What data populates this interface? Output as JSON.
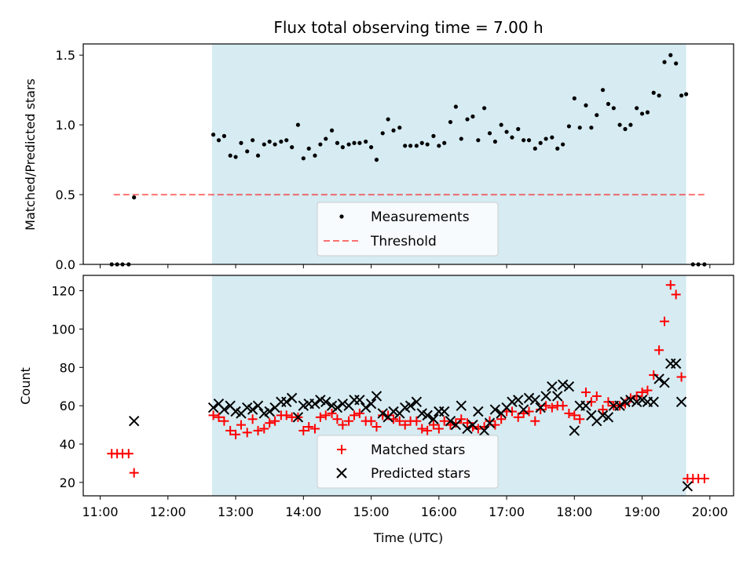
{
  "title": "Flux total observing time = 7.00 h",
  "colors": {
    "span": "#add8e6",
    "threshold": "#ff0000",
    "matched": "#ff0000",
    "predicted": "#000000",
    "measurements": "#000000"
  },
  "chart_data": [
    {
      "type": "scatter",
      "panel": "top",
      "ylabel": "Matched/Predicted stars",
      "ylim": [
        0,
        1.58
      ],
      "yticks": [
        0.0,
        0.5,
        1.0,
        1.5
      ],
      "ytick_labels": [
        "0.0",
        "0.5",
        "1.0",
        "1.5"
      ],
      "shaded_span": [
        12.65,
        19.65
      ],
      "legend": {
        "placement": "bottom-center",
        "entries": [
          "Measurements",
          "Threshold"
        ]
      },
      "threshold": {
        "name": "Threshold",
        "x": [
          11.2,
          19.92
        ],
        "y": 0.5
      },
      "series": [
        {
          "name": "Measurements",
          "x": [
            11.17,
            11.25,
            11.33,
            11.42,
            11.5,
            12.67,
            12.75,
            12.83,
            12.92,
            13.0,
            13.08,
            13.17,
            13.25,
            13.33,
            13.42,
            13.5,
            13.58,
            13.67,
            13.75,
            13.83,
            13.92,
            14.0,
            14.08,
            14.17,
            14.25,
            14.33,
            14.42,
            14.5,
            14.58,
            14.67,
            14.75,
            14.83,
            14.92,
            15.0,
            15.08,
            15.17,
            15.25,
            15.33,
            15.42,
            15.5,
            15.58,
            15.67,
            15.75,
            15.83,
            15.92,
            16.0,
            16.08,
            16.17,
            16.25,
            16.33,
            16.42,
            16.5,
            16.58,
            16.67,
            16.75,
            16.83,
            16.92,
            17.0,
            17.08,
            17.17,
            17.25,
            17.33,
            17.42,
            17.5,
            17.58,
            17.67,
            17.75,
            17.83,
            17.92,
            18.0,
            18.08,
            18.17,
            18.25,
            18.33,
            18.42,
            18.5,
            18.58,
            18.67,
            18.75,
            18.83,
            18.92,
            19.0,
            19.08,
            19.17,
            19.25,
            19.33,
            19.42,
            19.5,
            19.58,
            19.65,
            19.75,
            19.83,
            19.92
          ],
          "y": [
            0,
            0,
            0,
            0,
            0.48,
            0.93,
            0.89,
            0.92,
            0.78,
            0.77,
            0.87,
            0.81,
            0.89,
            0.78,
            0.86,
            0.88,
            0.86,
            0.88,
            0.89,
            0.84,
            1.0,
            0.76,
            0.83,
            0.78,
            0.86,
            0.9,
            0.96,
            0.87,
            0.84,
            0.86,
            0.87,
            0.87,
            0.88,
            0.84,
            0.75,
            0.94,
            1.04,
            0.96,
            0.98,
            0.85,
            0.85,
            0.85,
            0.87,
            0.86,
            0.92,
            0.85,
            0.87,
            1.02,
            1.13,
            0.9,
            1.04,
            1.06,
            0.89,
            1.12,
            0.94,
            0.88,
            1.0,
            0.95,
            0.91,
            0.97,
            0.89,
            0.89,
            0.83,
            0.87,
            0.9,
            0.91,
            0.83,
            0.86,
            0.99,
            1.19,
            0.98,
            1.14,
            0.98,
            1.07,
            1.25,
            1.15,
            1.12,
            1.0,
            0.97,
            1.0,
            1.12,
            1.08,
            1.09,
            1.23,
            1.21,
            1.45,
            1.5,
            1.44,
            1.21,
            1.22,
            0,
            0,
            0
          ]
        }
      ]
    },
    {
      "type": "scatter",
      "panel": "bottom",
      "xlabel": "Time (UTC)",
      "ylabel": "Count",
      "xlim": [
        10.75,
        20.35
      ],
      "xticks": [
        11,
        12,
        13,
        14,
        15,
        16,
        17,
        18,
        19,
        20
      ],
      "xtick_labels": [
        "11:00",
        "12:00",
        "13:00",
        "14:00",
        "15:00",
        "16:00",
        "17:00",
        "18:00",
        "19:00",
        "20:00"
      ],
      "ylim": [
        13,
        128
      ],
      "yticks": [
        20,
        40,
        60,
        80,
        100,
        120
      ],
      "ytick_labels": [
        "20",
        "40",
        "60",
        "80",
        "100",
        "120"
      ],
      "shaded_span": [
        12.65,
        19.65
      ],
      "legend": {
        "placement": "bottom-center",
        "entries": [
          "Matched stars",
          "Predicted stars"
        ]
      },
      "series": [
        {
          "name": "Matched stars",
          "marker": "plus",
          "x": [
            11.17,
            11.25,
            11.33,
            11.42,
            11.5,
            12.67,
            12.75,
            12.83,
            12.92,
            13.0,
            13.08,
            13.17,
            13.25,
            13.33,
            13.42,
            13.5,
            13.58,
            13.67,
            13.75,
            13.83,
            13.92,
            14.0,
            14.08,
            14.17,
            14.25,
            14.33,
            14.42,
            14.5,
            14.58,
            14.67,
            14.75,
            14.83,
            14.92,
            15.0,
            15.08,
            15.17,
            15.25,
            15.33,
            15.42,
            15.5,
            15.58,
            15.67,
            15.75,
            15.83,
            15.92,
            16.0,
            16.08,
            16.17,
            16.25,
            16.33,
            16.42,
            16.5,
            16.58,
            16.67,
            16.75,
            16.83,
            16.92,
            17.0,
            17.08,
            17.17,
            17.25,
            17.33,
            17.42,
            17.5,
            17.58,
            17.67,
            17.75,
            17.83,
            17.92,
            18.0,
            18.08,
            18.17,
            18.25,
            18.33,
            18.42,
            18.5,
            18.58,
            18.67,
            18.75,
            18.83,
            18.92,
            19.0,
            19.08,
            19.17,
            19.25,
            19.33,
            19.42,
            19.5,
            19.58,
            19.67,
            19.75,
            19.83,
            19.92
          ],
          "y": [
            35,
            35,
            35,
            35,
            25,
            55,
            54,
            52,
            47,
            45,
            50,
            46,
            53,
            47,
            48,
            51,
            52,
            55,
            55,
            54,
            54,
            47,
            49,
            48,
            54,
            55,
            56,
            53,
            50,
            52,
            55,
            56,
            52,
            52,
            49,
            55,
            55,
            53,
            52,
            50,
            52,
            52,
            48,
            47,
            50,
            48,
            52,
            50,
            51,
            53,
            51,
            49,
            48,
            49,
            52,
            50,
            53,
            57,
            57,
            54,
            56,
            57,
            52,
            58,
            60,
            59,
            60,
            60,
            56,
            55,
            53,
            67,
            62,
            65,
            58,
            62,
            60,
            60,
            61,
            64,
            65,
            67,
            68,
            76,
            89,
            104,
            123,
            118,
            75,
            22,
            22,
            22,
            22
          ]
        },
        {
          "name": "Predicted stars",
          "marker": "x",
          "x": [
            11.5,
            12.67,
            12.75,
            12.83,
            12.92,
            13.0,
            13.08,
            13.17,
            13.25,
            13.33,
            13.42,
            13.5,
            13.58,
            13.67,
            13.75,
            13.83,
            13.92,
            14.0,
            14.08,
            14.17,
            14.25,
            14.33,
            14.42,
            14.5,
            14.58,
            14.67,
            14.75,
            14.83,
            14.92,
            15.0,
            15.08,
            15.17,
            15.25,
            15.33,
            15.42,
            15.5,
            15.58,
            15.67,
            15.75,
            15.83,
            15.92,
            16.0,
            16.08,
            16.17,
            16.25,
            16.33,
            16.42,
            16.5,
            16.58,
            16.67,
            16.75,
            16.83,
            16.92,
            17.0,
            17.08,
            17.17,
            17.25,
            17.33,
            17.42,
            17.5,
            17.58,
            17.67,
            17.75,
            17.83,
            17.92,
            18.0,
            18.08,
            18.17,
            18.25,
            18.33,
            18.42,
            18.5,
            18.58,
            18.67,
            18.75,
            18.83,
            18.92,
            19.0,
            19.08,
            19.17,
            19.25,
            19.33,
            19.42,
            19.5,
            19.58,
            19.67
          ],
          "y": [
            52,
            59,
            61,
            58,
            60,
            57,
            56,
            59,
            58,
            60,
            56,
            57,
            59,
            62,
            62,
            64,
            54,
            60,
            61,
            61,
            63,
            62,
            60,
            59,
            61,
            60,
            63,
            63,
            59,
            61,
            65,
            56,
            54,
            57,
            56,
            59,
            60,
            62,
            56,
            55,
            53,
            57,
            57,
            52,
            50,
            60,
            48,
            50,
            57,
            47,
            51,
            58,
            56,
            59,
            62,
            63,
            58,
            64,
            63,
            59,
            65,
            70,
            65,
            71,
            70,
            47,
            60,
            60,
            55,
            52,
            55,
            54,
            60,
            60,
            62,
            63,
            62,
            63,
            62,
            62,
            74,
            72,
            82,
            82,
            62,
            18
          ]
        }
      ]
    }
  ]
}
